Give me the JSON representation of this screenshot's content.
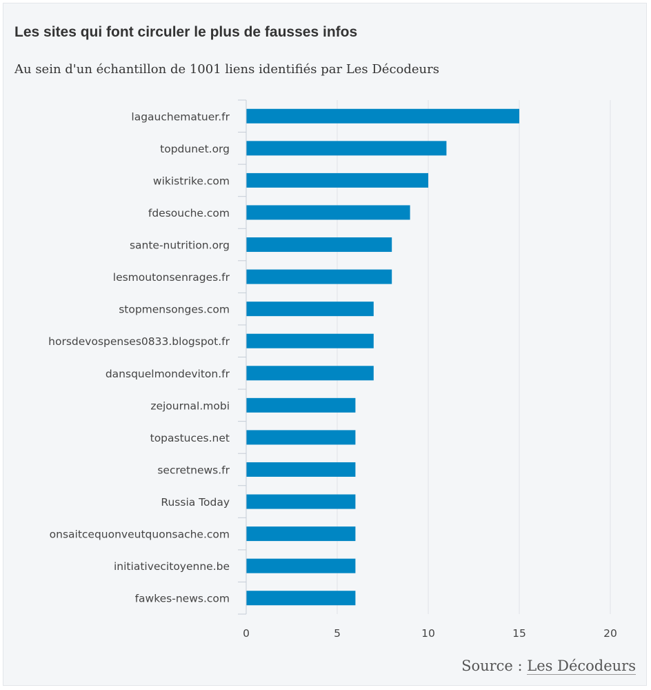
{
  "chart_data": {
    "type": "bar",
    "orientation": "horizontal",
    "title": "Les sites qui font circuler le plus de fausses infos",
    "subtitle": "Au sein d'un échantillon de 1001 liens identifiés par Les Décodeurs",
    "categories": [
      "lagauchematuer.fr",
      "topdunet.org",
      "wikistrike.com",
      "fdesouche.com",
      "sante-nutrition.org",
      "lesmoutonsenrages.fr",
      "stopmensonges.com",
      "horsdevospenses0833.blogspot.fr",
      "dansquelmondeviton.fr",
      "zejournal.mobi",
      "topastuces.net",
      "secretnews.fr",
      "Russia Today",
      "onsaitcequonveutquonsache.com",
      "initiativecitoyenne.be",
      "fawkes-news.com"
    ],
    "values": [
      15,
      11,
      10,
      9,
      8,
      8,
      7,
      7,
      7,
      6,
      6,
      6,
      6,
      6,
      6,
      6
    ],
    "xlim": [
      0,
      20
    ],
    "xticks": [
      0,
      5,
      10,
      15,
      20
    ],
    "grid": true,
    "bar_color": "#0086c3"
  },
  "source": {
    "prefix": "Source : ",
    "link_text": "Les Décodeurs"
  }
}
